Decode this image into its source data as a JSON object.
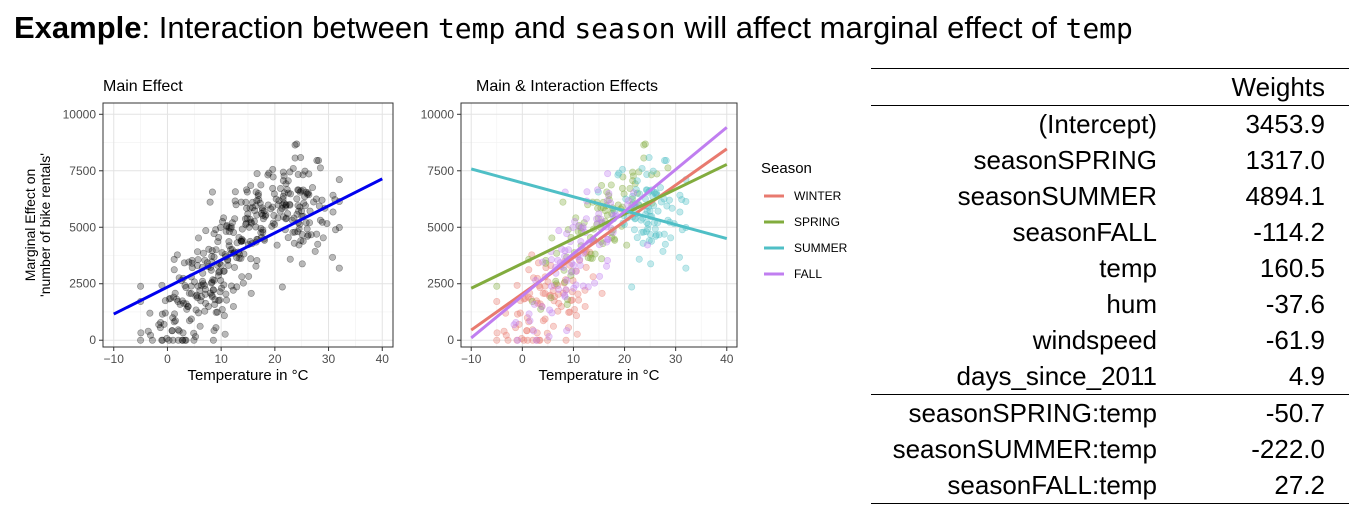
{
  "title": {
    "bold": "Example",
    "part1": ": Interaction between ",
    "code1": "temp",
    "part2": " and ",
    "code2": "season",
    "part3": " will affect marginal effect of ",
    "code3": "temp"
  },
  "chart_data": [
    {
      "type": "scatter",
      "title": "Main Effect",
      "xlabel": "Temperature in °C",
      "ylabel_line1": "Marginal Effect on",
      "ylabel_line2": "'number of bike rentals'",
      "xlim": [
        -12,
        42
      ],
      "ylim": [
        -300,
        10500
      ],
      "xticks": [
        -10,
        0,
        10,
        20,
        30,
        40
      ],
      "yticks": [
        0,
        2500,
        5000,
        7500,
        10000
      ],
      "grid": true,
      "point_color": "#000000",
      "fit_line": {
        "name": "Main effect",
        "x": [
          -10,
          40
        ],
        "y": [
          1158,
          7143
        ],
        "color": "#0000ee"
      }
    },
    {
      "type": "scatter",
      "title": "Main & Interaction Effects",
      "xlabel": "Temperature in °C",
      "xlim": [
        -12,
        42
      ],
      "ylim": [
        -300,
        10500
      ],
      "xticks": [
        -10,
        0,
        10,
        20,
        30,
        40
      ],
      "yticks": [
        0,
        2500,
        5000,
        7500,
        10000
      ],
      "grid": true,
      "legend_title": "Season",
      "legend_position": "right",
      "series": [
        {
          "name": "WINTER",
          "color": "#e87a6f",
          "x": [
            -10,
            40
          ],
          "y": [
            450,
            8470
          ]
        },
        {
          "name": "SPRING",
          "color": "#82ac3e",
          "x": [
            -10,
            40
          ],
          "y": [
            2300,
            7780
          ]
        },
        {
          "name": "SUMMER",
          "color": "#4fbfc6",
          "x": [
            -10,
            40
          ],
          "y": [
            7580,
            4500
          ]
        },
        {
          "name": "FALL",
          "color": "#c07ef0",
          "x": [
            -10,
            40
          ],
          "y": [
            100,
            9420
          ]
        }
      ]
    }
  ],
  "weights_table": {
    "header": "Weights",
    "rows": [
      {
        "term": "(Intercept)",
        "weight": "3453.9"
      },
      {
        "term": "seasonSPRING",
        "weight": "1317.0"
      },
      {
        "term": "seasonSUMMER",
        "weight": "4894.1"
      },
      {
        "term": "seasonFALL",
        "weight": "-114.2"
      },
      {
        "term": "temp",
        "weight": "160.5"
      },
      {
        "term": "hum",
        "weight": "-37.6"
      },
      {
        "term": "windspeed",
        "weight": "-61.9"
      },
      {
        "term": "days_since_2011",
        "weight": "4.9"
      }
    ],
    "interaction_rows": [
      {
        "term": "seasonSPRING:temp",
        "weight": "-50.7"
      },
      {
        "term": "seasonSUMMER:temp",
        "weight": "-222.0"
      },
      {
        "term": "seasonFALL:temp",
        "weight": "27.2"
      }
    ]
  }
}
